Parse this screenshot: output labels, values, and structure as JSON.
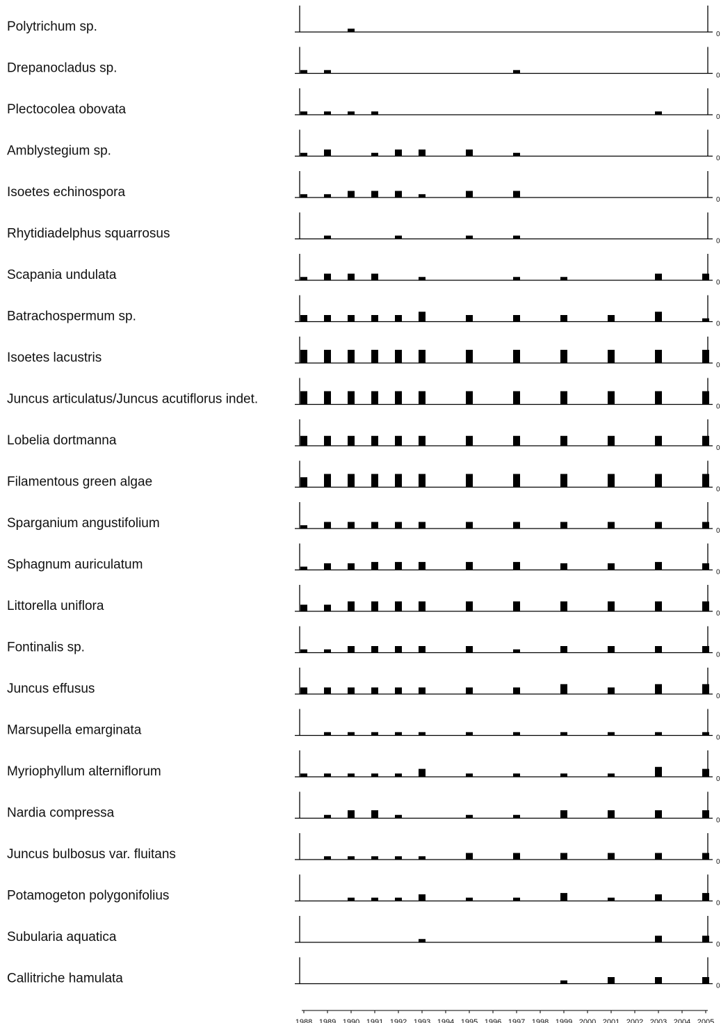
{
  "chart_data": {
    "type": "bar",
    "title": "",
    "xlabel": "",
    "ylabel": "",
    "ylim": [
      0,
      4
    ],
    "zero_label": "0",
    "bar_color": "#000000",
    "categories": [
      "1988",
      "1989",
      "1990",
      "1991",
      "1992",
      "1993",
      "1994",
      "1995",
      "1996",
      "1997",
      "1998",
      "1999",
      "2000",
      "2001",
      "2002",
      "2003",
      "2004",
      "2005"
    ],
    "series": [
      {
        "name": "Polytrichum sp.",
        "values": [
          0,
          0,
          0.5,
          0,
          0,
          0,
          0,
          0,
          0,
          0,
          0,
          0,
          0,
          0,
          0,
          0,
          0,
          0
        ]
      },
      {
        "name": "Drepanocladus sp.",
        "values": [
          0.5,
          0.5,
          0,
          0,
          0,
          0,
          0,
          0,
          0,
          0.5,
          0,
          0,
          0,
          0,
          0,
          0,
          0,
          0
        ]
      },
      {
        "name": "Plectocolea obovata",
        "values": [
          0.5,
          0.5,
          0.5,
          0.5,
          0,
          0,
          0,
          0,
          0,
          0,
          0,
          0,
          0,
          0,
          0,
          0.5,
          0,
          0
        ]
      },
      {
        "name": "Amblystegium sp.",
        "values": [
          0.5,
          1,
          0,
          0.5,
          1,
          1,
          0,
          1,
          0,
          0.5,
          0,
          0,
          0,
          0,
          0,
          0,
          0,
          0
        ]
      },
      {
        "name": "Isoetes echinospora",
        "values": [
          0.5,
          0.5,
          1,
          1,
          1,
          0.5,
          0,
          1,
          0,
          1,
          0,
          0,
          0,
          0,
          0,
          0,
          0,
          0
        ]
      },
      {
        "name": "Rhytidiadelphus squarrosus",
        "values": [
          0,
          0.5,
          0,
          0,
          0.5,
          0,
          0,
          0.5,
          0,
          0.5,
          0,
          0,
          0,
          0,
          0,
          0,
          0,
          0
        ]
      },
      {
        "name": "Scapania undulata",
        "values": [
          0.5,
          1,
          1,
          1,
          0,
          0.5,
          0,
          0,
          0,
          0.5,
          0,
          0.5,
          0,
          0,
          0,
          1,
          0,
          1
        ]
      },
      {
        "name": "Batrachospermum sp.",
        "values": [
          1,
          1,
          1,
          1,
          1,
          1.5,
          0,
          1,
          0,
          1,
          0,
          1,
          0,
          1,
          0,
          1.5,
          0,
          0.5
        ]
      },
      {
        "name": "Isoetes lacustris",
        "values": [
          2,
          2,
          2,
          2,
          2,
          2,
          0,
          2,
          0,
          2,
          0,
          2,
          0,
          2,
          0,
          2,
          0,
          2
        ]
      },
      {
        "name": "Juncus articulatus/Juncus acutiflorus indet.",
        "values": [
          2,
          2,
          2,
          2,
          2,
          2,
          0,
          2,
          0,
          2,
          0,
          2,
          0,
          2,
          0,
          2,
          0,
          2
        ]
      },
      {
        "name": "Lobelia dortmanna",
        "values": [
          1.5,
          1.5,
          1.5,
          1.5,
          1.5,
          1.5,
          0,
          1.5,
          0,
          1.5,
          0,
          1.5,
          0,
          1.5,
          0,
          1.5,
          0,
          1.5
        ]
      },
      {
        "name": "Filamentous green algae",
        "values": [
          1.5,
          2,
          2,
          2,
          2,
          2,
          0,
          2,
          0,
          2,
          0,
          2,
          0,
          2,
          0,
          2,
          0,
          2
        ]
      },
      {
        "name": "Sparganium angustifolium",
        "values": [
          0.5,
          1,
          1,
          1,
          1,
          1,
          0,
          1,
          0,
          1,
          0,
          1,
          0,
          1,
          0,
          1,
          0,
          1
        ]
      },
      {
        "name": "Sphagnum auriculatum",
        "values": [
          0.5,
          1,
          1,
          1.2,
          1.2,
          1.2,
          0,
          1.2,
          0,
          1.2,
          0,
          1,
          0,
          1,
          0,
          1.2,
          0,
          1
        ]
      },
      {
        "name": "Littorella uniflora",
        "values": [
          1,
          1,
          1.5,
          1.5,
          1.5,
          1.5,
          0,
          1.5,
          0,
          1.5,
          0,
          1.5,
          0,
          1.5,
          0,
          1.5,
          0,
          1.5
        ]
      },
      {
        "name": "Fontinalis sp.",
        "values": [
          0.5,
          0.5,
          1,
          1,
          1,
          1,
          0,
          1,
          0,
          0.5,
          0,
          1,
          0,
          1,
          0,
          1,
          0,
          1
        ]
      },
      {
        "name": "Juncus effusus",
        "values": [
          1,
          1,
          1,
          1,
          1,
          1,
          0,
          1,
          0,
          1,
          0,
          1.5,
          0,
          1,
          0,
          1.5,
          0,
          1.5
        ]
      },
      {
        "name": "Marsupella emarginata",
        "values": [
          0,
          0.5,
          0.5,
          0.5,
          0.5,
          0.5,
          0,
          0.5,
          0,
          0.5,
          0,
          0.5,
          0,
          0.5,
          0,
          0.5,
          0,
          0.5
        ]
      },
      {
        "name": "Myriophyllum alterniflorum",
        "values": [
          0.5,
          0.5,
          0.5,
          0.5,
          0.5,
          1.2,
          0,
          0.5,
          0,
          0.5,
          0,
          0.5,
          0,
          0.5,
          0,
          1.5,
          0,
          1.2
        ]
      },
      {
        "name": "Nardia compressa",
        "values": [
          0,
          0.5,
          1.2,
          1.2,
          0.5,
          0,
          0,
          0.5,
          0,
          0.5,
          0,
          1.2,
          0,
          1.2,
          0,
          1.2,
          0,
          1.2
        ]
      },
      {
        "name": "Juncus bulbosus var. fluitans",
        "values": [
          0,
          0.5,
          0.5,
          0.5,
          0.5,
          0.5,
          0,
          1,
          0,
          1,
          0,
          1,
          0,
          1,
          0,
          1,
          0,
          1
        ]
      },
      {
        "name": "Potamogeton polygonifolius",
        "values": [
          0,
          0,
          0.5,
          0.5,
          0.5,
          1,
          0,
          0.5,
          0,
          0.5,
          0,
          1.2,
          0,
          0.5,
          0,
          1,
          0,
          1.2
        ]
      },
      {
        "name": "Subularia aquatica",
        "values": [
          0,
          0,
          0,
          0,
          0,
          0.5,
          0,
          0,
          0,
          0,
          0,
          0,
          0,
          0,
          0,
          1,
          0,
          1
        ]
      },
      {
        "name": "Callitriche hamulata",
        "values": [
          0,
          0,
          0,
          0,
          0,
          0,
          0,
          0,
          0,
          0,
          0,
          0.5,
          0,
          1,
          0,
          1,
          0,
          1
        ]
      }
    ]
  }
}
